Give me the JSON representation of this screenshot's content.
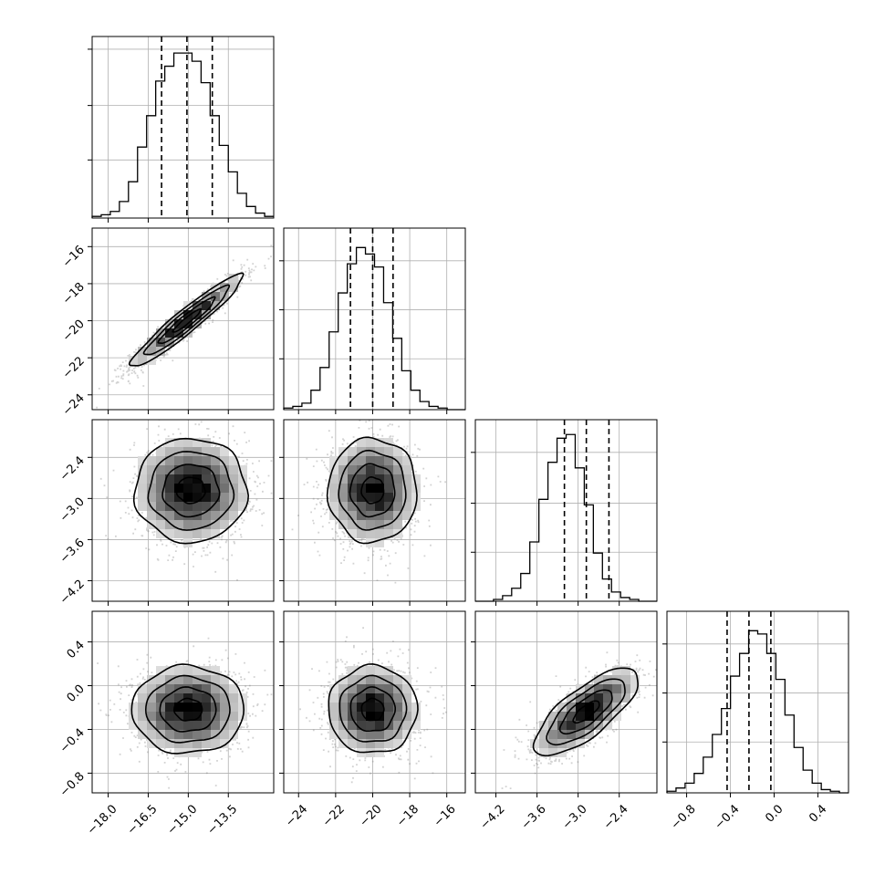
{
  "chart_data": {
    "type": "corner",
    "colors": {
      "line": "#000000",
      "points": "#7f7f7f",
      "grid": "#b0b0b0"
    },
    "grid": true,
    "parameters": [
      {
        "range": [
          -18.6,
          -11.8
        ],
        "ticks": [
          -18.0,
          -16.5,
          -15.0,
          -13.5
        ],
        "tick_labels": [
          "−18.0",
          "−16.5",
          "−15.0",
          "−13.5"
        ],
        "quantiles": [
          -16.0,
          -15.05,
          -14.1
        ],
        "hist_counts": [
          1,
          2,
          4,
          10,
          22,
          43,
          62,
          83,
          92,
          100,
          100,
          95,
          82,
          62,
          44,
          28,
          15,
          7,
          3,
          1
        ],
        "hist_max_axis": 110,
        "hist_grid_fracs": [
          0.32,
          0.62,
          0.93
        ]
      },
      {
        "range": [
          -24.8,
          -15.0
        ],
        "ticks": [
          -24,
          -22,
          -20,
          -18,
          -16
        ],
        "tick_labels": [
          "−24",
          "−22",
          "−20",
          "−18",
          "−16"
        ],
        "quantiles": [
          -21.2,
          -20.0,
          -18.9
        ],
        "hist_counts": [
          1,
          2,
          4,
          12,
          26,
          48,
          72,
          90,
          100,
          96,
          88,
          66,
          44,
          24,
          12,
          5,
          2,
          1,
          0,
          0
        ],
        "hist_max_axis": 112,
        "hist_grid_fracs": [
          0.28,
          0.55,
          0.82
        ]
      },
      {
        "range": [
          -4.5,
          -1.85
        ],
        "ticks": [
          -4.2,
          -3.6,
          -3.0,
          -2.4
        ],
        "tick_labels": [
          "−4.2",
          "−3.6",
          "−3.0",
          "−2.4"
        ],
        "quantiles": [
          -3.2,
          -2.88,
          -2.55
        ],
        "hist_counts": [
          0,
          0,
          1,
          3,
          7,
          15,
          32,
          55,
          75,
          88,
          90,
          72,
          52,
          26,
          12,
          5,
          2,
          1,
          0,
          0
        ],
        "hist_max_axis": 98,
        "hist_grid_fracs": [
          0.27,
          0.54,
          0.82
        ]
      },
      {
        "range": [
          -0.98,
          0.68
        ],
        "ticks": [
          -0.8,
          -0.4,
          0.0,
          0.4
        ],
        "tick_labels": [
          "−0.8",
          "−0.4",
          "0.0",
          "0.4"
        ],
        "quantiles": [
          -0.43,
          -0.23,
          -0.03
        ],
        "hist_counts": [
          1,
          3,
          6,
          12,
          22,
          36,
          52,
          72,
          86,
          100,
          98,
          86,
          70,
          48,
          28,
          14,
          6,
          2,
          1,
          0
        ],
        "hist_max_axis": 112,
        "hist_grid_fracs": [
          0.28,
          0.55,
          0.82
        ]
      }
    ],
    "pairs": [
      {
        "x": 0,
        "y": 1,
        "mean": [
          -15.05,
          -20.0
        ],
        "sd": [
          1.05,
          1.25
        ],
        "rho": 0.95
      },
      {
        "x": 0,
        "y": 2,
        "mean": [
          -14.9,
          -2.88
        ],
        "sd": [
          1.05,
          0.38
        ],
        "rho": 0.0
      },
      {
        "x": 1,
        "y": 2,
        "mean": [
          -20.0,
          -2.88
        ],
        "sd": [
          1.2,
          0.38
        ],
        "rho": 0.0
      },
      {
        "x": 0,
        "y": 3,
        "mean": [
          -15.0,
          -0.22
        ],
        "sd": [
          1.05,
          0.2
        ],
        "rho": 0.0
      },
      {
        "x": 1,
        "y": 3,
        "mean": [
          -20.0,
          -0.22
        ],
        "sd": [
          1.2,
          0.2
        ],
        "rho": 0.0
      },
      {
        "x": 2,
        "y": 3,
        "mean": [
          -2.88,
          -0.24
        ],
        "sd": [
          0.38,
          0.2
        ],
        "rho": 0.75
      }
    ]
  }
}
